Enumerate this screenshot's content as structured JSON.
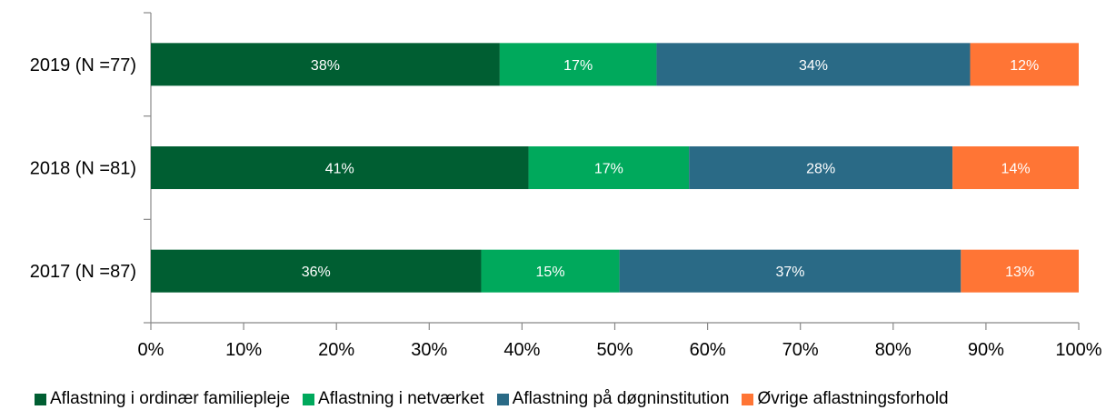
{
  "chart_data": {
    "type": "bar",
    "orientation": "horizontal",
    "stacked": true,
    "title": "",
    "xlabel": "",
    "ylabel": "",
    "xlim": [
      0,
      100
    ],
    "x_ticks": [
      "0%",
      "10%",
      "20%",
      "30%",
      "40%",
      "50%",
      "60%",
      "70%",
      "80%",
      "90%",
      "100%"
    ],
    "categories": [
      "2019 (N =77)",
      "2018 (N =81)",
      "2017 (N =87)"
    ],
    "series": [
      {
        "name": "Aflastning i ordinær familiepleje",
        "color": "#005e32",
        "values": [
          37.6,
          40.7,
          35.6
        ],
        "labels": [
          "38%",
          "41%",
          "36%"
        ]
      },
      {
        "name": "Aflastning i netværket",
        "color": "#00a95c",
        "values": [
          16.9,
          17.3,
          14.9
        ],
        "labels": [
          "17%",
          "17%",
          "15%"
        ]
      },
      {
        "name": "Aflastning på døgninstitution",
        "color": "#2a6a86",
        "values": [
          33.8,
          28.4,
          36.8
        ],
        "labels": [
          "34%",
          "28%",
          "37%"
        ]
      },
      {
        "name": "Øvrige aflastningsforhold",
        "color": "#ff7535",
        "values": [
          11.7,
          13.6,
          12.7
        ],
        "labels": [
          "12%",
          "14%",
          "13%"
        ]
      }
    ],
    "legend_position": "bottom",
    "grid": false
  }
}
